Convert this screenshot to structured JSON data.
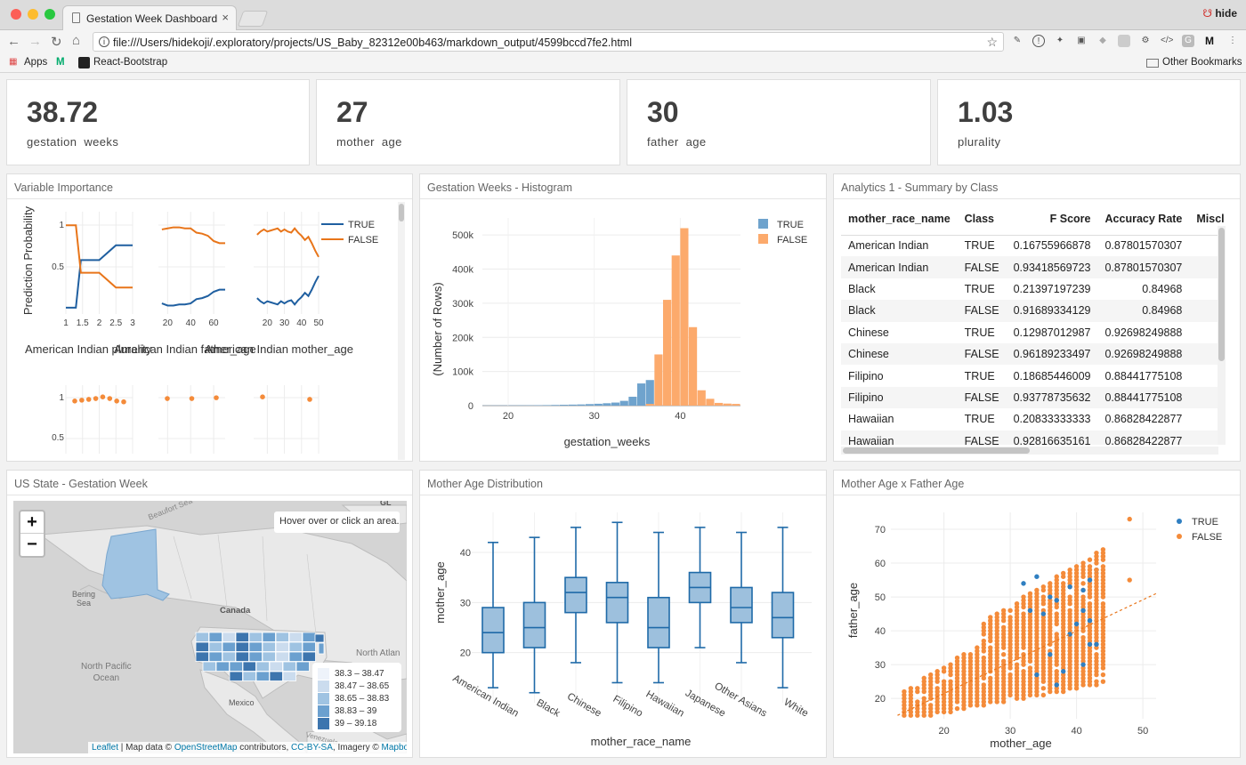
{
  "browser": {
    "tab_title": "Gestation Week Dashboard",
    "tab_close": "×",
    "profile_name": "hide",
    "url": "file:///Users/hidekoji/.exploratory/projects/US_Baby_82312e00b463/markdown_output/4599bccd7fe2.html",
    "bookmarks": [
      "Apps",
      "React-Bootstrap"
    ],
    "other_bookmarks": "Other Bookmarks"
  },
  "kpis": [
    {
      "value": "38.72",
      "label": "gestation  weeks"
    },
    {
      "value": "27",
      "label": "mother  age"
    },
    {
      "value": "30",
      "label": "father  age"
    },
    {
      "value": "1.03",
      "label": "plurality"
    }
  ],
  "panels": {
    "variable_importance": "Variable Importance",
    "histogram": "Gestation Weeks - Histogram",
    "summary": "Analytics 1 - Summary by Class",
    "map": "US State - Gestation Week",
    "boxplot": "Mother Age Distribution",
    "scatter": "Mother Age x Father Age"
  },
  "variable_importance": {
    "ylabel": "Prediction Probability",
    "subplot_titles": [
      "American Indian plurality",
      "American Indian father_age",
      "American Indian mother_age"
    ],
    "legend": [
      {
        "name": "TRUE",
        "color": "#1f5fa0"
      },
      {
        "name": "FALSE",
        "color": "#e8751a"
      }
    ],
    "yticks": [
      "1",
      "0.5"
    ],
    "xticks1": [
      "1",
      "1.5",
      "2",
      "2.5",
      "3"
    ],
    "xticks2": [
      "20",
      "40",
      "60"
    ],
    "xticks3": [
      "20",
      "30",
      "40",
      "50"
    ],
    "subplots": [
      {
        "x": [
          1,
          1.3,
          1.45,
          1.55,
          2,
          2.5,
          3
        ],
        "true": [
          0.11,
          0.11,
          0.56,
          0.56,
          0.56,
          0.7,
          0.7
        ],
        "false": [
          0.89,
          0.89,
          0.44,
          0.44,
          0.44,
          0.3,
          0.3
        ]
      },
      {
        "x": [
          15,
          20,
          25,
          30,
          35,
          40,
          45,
          50,
          55,
          60,
          65,
          70
        ],
        "true": [
          0.15,
          0.13,
          0.13,
          0.14,
          0.14,
          0.15,
          0.19,
          0.2,
          0.22,
          0.26,
          0.28,
          0.28
        ],
        "false": [
          0.85,
          0.86,
          0.87,
          0.87,
          0.86,
          0.86,
          0.82,
          0.81,
          0.79,
          0.74,
          0.72,
          0.72
        ]
      },
      {
        "x": [
          14,
          16,
          18,
          20,
          22,
          24,
          26,
          28,
          30,
          32,
          34,
          36,
          38,
          40,
          42,
          44,
          46,
          48,
          50
        ],
        "true": [
          0.2,
          0.17,
          0.15,
          0.17,
          0.16,
          0.15,
          0.14,
          0.17,
          0.15,
          0.17,
          0.18,
          0.14,
          0.18,
          0.21,
          0.25,
          0.22,
          0.28,
          0.35,
          0.41
        ],
        "false": [
          0.8,
          0.83,
          0.85,
          0.83,
          0.84,
          0.85,
          0.86,
          0.83,
          0.85,
          0.83,
          0.82,
          0.86,
          0.82,
          0.79,
          0.75,
          0.78,
          0.72,
          0.65,
          0.59
        ]
      }
    ],
    "row2": [
      {
        "points": [
          0.85,
          0.86,
          0.87,
          0.88,
          0.9,
          0.88,
          0.85,
          0.84
        ]
      },
      {
        "points": [
          0.88,
          0.88,
          0.89
        ]
      },
      {
        "points": [
          0.9,
          0.87
        ]
      }
    ]
  },
  "histogram": {
    "chart_data": {
      "type": "bar",
      "xlabel": "gestation_weeks",
      "ylabel": "(Number of Rows)",
      "xlim": [
        17,
        47
      ],
      "ylim": [
        0,
        550000
      ],
      "bin_width": 1,
      "yticks": [
        "0",
        "100k",
        "200k",
        "300k",
        "400k",
        "500k"
      ],
      "xticks": [
        "20",
        "30",
        "40"
      ],
      "series": [
        {
          "name": "TRUE",
          "color": "#6fa3cd",
          "bins": [
            [
              17,
              500
            ],
            [
              18,
              600
            ],
            [
              19,
              700
            ],
            [
              20,
              800
            ],
            [
              21,
              900
            ],
            [
              22,
              1000
            ],
            [
              23,
              1200
            ],
            [
              24,
              1500
            ],
            [
              25,
              2000
            ],
            [
              26,
              2500
            ],
            [
              27,
              3000
            ],
            [
              28,
              3500
            ],
            [
              29,
              4500
            ],
            [
              30,
              5500
            ],
            [
              31,
              7000
            ],
            [
              32,
              9000
            ],
            [
              33,
              14000
            ],
            [
              34,
              26000
            ],
            [
              35,
              65000
            ],
            [
              36,
              75000
            ]
          ]
        },
        {
          "name": "FALSE",
          "color": "#fcaa6c",
          "bins": [
            [
              36,
              5000
            ],
            [
              37,
              150000
            ],
            [
              38,
              310000
            ],
            [
              39,
              440000
            ],
            [
              40,
              520000
            ],
            [
              41,
              230000
            ],
            [
              42,
              45000
            ],
            [
              43,
              20000
            ],
            [
              44,
              8000
            ],
            [
              45,
              6000
            ],
            [
              46,
              5000
            ]
          ]
        }
      ]
    }
  },
  "summary": {
    "columns": [
      "mother_race_name",
      "Class",
      "F Score",
      "Accuracy Rate",
      "Miscla"
    ],
    "rows": [
      [
        "American Indian",
        "TRUE",
        "0.16755966878",
        "0.87801570307"
      ],
      [
        "American Indian",
        "FALSE",
        "0.93418569723",
        "0.87801570307"
      ],
      [
        "Black",
        "TRUE",
        "0.21397197239",
        "0.84968"
      ],
      [
        "Black",
        "FALSE",
        "0.91689334129",
        "0.84968"
      ],
      [
        "Chinese",
        "TRUE",
        "0.12987012987",
        "0.92698249888"
      ],
      [
        "Chinese",
        "FALSE",
        "0.96189233497",
        "0.92698249888"
      ],
      [
        "Filipino",
        "TRUE",
        "0.18685446009",
        "0.88441775108"
      ],
      [
        "Filipino",
        "FALSE",
        "0.93778735632",
        "0.88441775108"
      ],
      [
        "Hawaiian",
        "TRUE",
        "0.20833333333",
        "0.86828422877"
      ],
      [
        "Hawaiian",
        "FALSE",
        "0.92816635161",
        "0.86828422877"
      ]
    ]
  },
  "map": {
    "zoom_in": "+",
    "zoom_out": "−",
    "info": "Hover over or click an area.",
    "corner_label": "GL",
    "labels": {
      "beaufort": "Beaufort Sea",
      "bering": "Bering\nSea",
      "canada": "Canada",
      "north_pacific": "North Pacific\nOcean",
      "north_atlantic": "North Atlan",
      "mexico": "Mexico",
      "venezuela": "Venezuela"
    },
    "legend": [
      {
        "range": "38.3 – 38.47",
        "color": "#eef3fa"
      },
      {
        "range": "38.47 – 38.65",
        "color": "#cbdcee"
      },
      {
        "range": "38.65 – 38.83",
        "color": "#9fc3e2"
      },
      {
        "range": "38.83 – 39",
        "color": "#6ba0cf"
      },
      {
        "range": "39 – 39.18",
        "color": "#3d75ae"
      }
    ],
    "attribution": {
      "leaflet": "Leaflet",
      "text1": " | Map data © ",
      "osm": "OpenStreetMap",
      "text2": " contributors, ",
      "ccbysa": "CC-BY-SA",
      "text3": ", Imagery © ",
      "mapbox": "Mapbox"
    }
  },
  "boxplot": {
    "chart_data": {
      "type": "box",
      "xlabel": "mother_race_name",
      "ylabel": "mother_age",
      "ylim": [
        10,
        48
      ],
      "yticks": [
        "20",
        "30",
        "40"
      ],
      "color": "#1f6aa8",
      "fill": "#9dc0dd",
      "boxes": [
        {
          "category": "American Indian",
          "min": 13,
          "q1": 20,
          "median": 24,
          "q3": 29,
          "max": 42
        },
        {
          "category": "Black",
          "min": 12,
          "q1": 21,
          "median": 25,
          "q3": 30,
          "max": 43
        },
        {
          "category": "Chinese",
          "min": 18,
          "q1": 28,
          "median": 32,
          "q3": 35,
          "max": 45
        },
        {
          "category": "Filipino",
          "min": 14,
          "q1": 26,
          "median": 31,
          "q3": 34,
          "max": 46
        },
        {
          "category": "Hawaiian",
          "min": 14,
          "q1": 21,
          "median": 25,
          "q3": 31,
          "max": 44
        },
        {
          "category": "Japanese",
          "min": 21,
          "q1": 30,
          "median": 33,
          "q3": 36,
          "max": 45
        },
        {
          "category": "Other Asians",
          "min": 18,
          "q1": 26,
          "median": 29,
          "q3": 33,
          "max": 44
        },
        {
          "category": "White",
          "min": 13,
          "q1": 23,
          "median": 27,
          "q3": 32,
          "max": 45
        }
      ]
    }
  },
  "scatter": {
    "chart_data": {
      "type": "scatter",
      "xlabel": "mother_age",
      "ylabel": "father_age",
      "xlim": [
        12,
        52
      ],
      "ylim": [
        14,
        75
      ],
      "xticks": [
        "20",
        "30",
        "40",
        "50"
      ],
      "yticks": [
        "20",
        "30",
        "40",
        "50",
        "60",
        "70"
      ],
      "series": [
        {
          "name": "TRUE",
          "color": "#2f7fc1"
        },
        {
          "name": "FALSE",
          "color": "#f48b3a"
        }
      ],
      "trend": [
        [
          13,
          15
        ],
        [
          52,
          51
        ]
      ],
      "false_outliers": [
        [
          48,
          73
        ],
        [
          48,
          55
        ],
        [
          44,
          62
        ],
        [
          43,
          58
        ]
      ],
      "true_outliers": [
        [
          43,
          58
        ],
        [
          42,
          55
        ],
        [
          41,
          52
        ],
        [
          42,
          36
        ],
        [
          41,
          30
        ],
        [
          32,
          54
        ],
        [
          34,
          56
        ],
        [
          35,
          45
        ],
        [
          36,
          33
        ],
        [
          40,
          42
        ],
        [
          39,
          39
        ],
        [
          34,
          27
        ],
        [
          37,
          49
        ],
        [
          43,
          36
        ],
        [
          38,
          28
        ],
        [
          33,
          46
        ],
        [
          39,
          53
        ],
        [
          41,
          46
        ],
        [
          36,
          50
        ],
        [
          37,
          24
        ],
        [
          42,
          43
        ]
      ]
    }
  }
}
